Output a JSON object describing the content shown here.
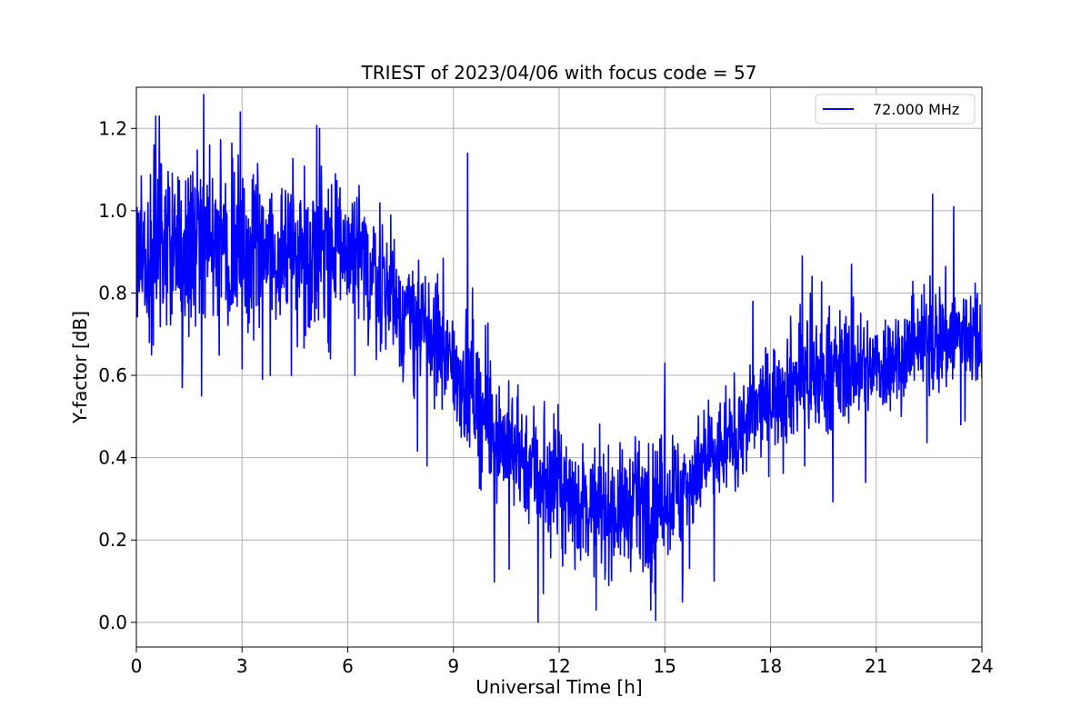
{
  "chart_data": {
    "type": "line",
    "title": "TRIEST of 2023/04/06 with focus code = 57",
    "xlabel": "Universal Time [h]",
    "ylabel": "Y-factor [dB]",
    "xlim": [
      0,
      24
    ],
    "ylim": [
      -0.06,
      1.3
    ],
    "xticks": [
      0,
      3,
      6,
      9,
      12,
      15,
      18,
      21,
      24
    ],
    "xtick_labels": [
      "0",
      "3",
      "6",
      "9",
      "12",
      "15",
      "18",
      "21",
      "24"
    ],
    "yticks": [
      0.0,
      0.2,
      0.4,
      0.6,
      0.8,
      1.0,
      1.2
    ],
    "ytick_labels": [
      "0.0",
      "0.2",
      "0.4",
      "0.6",
      "0.8",
      "1.0",
      "1.2"
    ],
    "grid": true,
    "legend_position": "top-right",
    "series": [
      {
        "name": "72.000 MHz",
        "color": "#0000ff",
        "x": [
          0,
          0.5,
          1,
          1.5,
          2,
          2.5,
          3,
          3.5,
          4,
          4.5,
          5,
          5.5,
          6,
          6.5,
          7,
          7.5,
          8,
          8.5,
          9,
          9.5,
          10,
          10.5,
          11,
          11.5,
          12,
          12.5,
          13,
          13.5,
          14,
          14.5,
          15,
          15.5,
          16,
          16.5,
          17,
          17.5,
          18,
          18.5,
          19,
          19.5,
          20,
          20.5,
          21,
          21.5,
          22,
          22.5,
          23,
          23.5,
          24
        ],
        "values": [
          0.88,
          0.92,
          0.93,
          0.92,
          0.91,
          0.9,
          0.91,
          0.9,
          0.91,
          0.9,
          0.9,
          0.91,
          0.91,
          0.86,
          0.82,
          0.76,
          0.72,
          0.68,
          0.62,
          0.57,
          0.48,
          0.43,
          0.4,
          0.36,
          0.32,
          0.29,
          0.28,
          0.27,
          0.28,
          0.29,
          0.3,
          0.33,
          0.37,
          0.41,
          0.45,
          0.5,
          0.55,
          0.58,
          0.6,
          0.6,
          0.61,
          0.62,
          0.62,
          0.64,
          0.66,
          0.68,
          0.69,
          0.7,
          0.7
        ],
        "spread": [
          0.1,
          0.11,
          0.12,
          0.12,
          0.11,
          0.11,
          0.1,
          0.09,
          0.09,
          0.09,
          0.09,
          0.1,
          0.09,
          0.08,
          0.08,
          0.08,
          0.07,
          0.07,
          0.07,
          0.08,
          0.08,
          0.07,
          0.07,
          0.08,
          0.07,
          0.07,
          0.07,
          0.07,
          0.07,
          0.07,
          0.07,
          0.07,
          0.06,
          0.06,
          0.06,
          0.06,
          0.06,
          0.07,
          0.07,
          0.07,
          0.07,
          0.06,
          0.06,
          0.06,
          0.06,
          0.07,
          0.07,
          0.06,
          0.06
        ],
        "spikes": [
          {
            "x": 0.55,
            "y": 1.23
          },
          {
            "x": 0.65,
            "y": 1.23
          },
          {
            "x": 1.3,
            "y": 0.57
          },
          {
            "x": 1.85,
            "y": 0.55
          },
          {
            "x": 2.95,
            "y": 1.24
          },
          {
            "x": 3.8,
            "y": 0.6
          },
          {
            "x": 4.4,
            "y": 0.6
          },
          {
            "x": 5.2,
            "y": 1.2
          },
          {
            "x": 6.2,
            "y": 0.6
          },
          {
            "x": 8.25,
            "y": 0.38
          },
          {
            "x": 9.4,
            "y": 1.14
          },
          {
            "x": 11.4,
            "y": 0.0
          },
          {
            "x": 11.55,
            "y": 0.07
          },
          {
            "x": 13.05,
            "y": 0.03
          },
          {
            "x": 14.6,
            "y": 0.03
          },
          {
            "x": 15.0,
            "y": 0.63
          },
          {
            "x": 15.5,
            "y": 0.05
          },
          {
            "x": 16.4,
            "y": 0.1
          },
          {
            "x": 17.5,
            "y": 0.78
          },
          {
            "x": 18.9,
            "y": 0.89
          },
          {
            "x": 20.3,
            "y": 0.87
          },
          {
            "x": 20.7,
            "y": 0.34
          },
          {
            "x": 22.6,
            "y": 1.04
          },
          {
            "x": 23.2,
            "y": 1.01
          },
          {
            "x": 23.4,
            "y": 0.48
          }
        ]
      }
    ]
  }
}
